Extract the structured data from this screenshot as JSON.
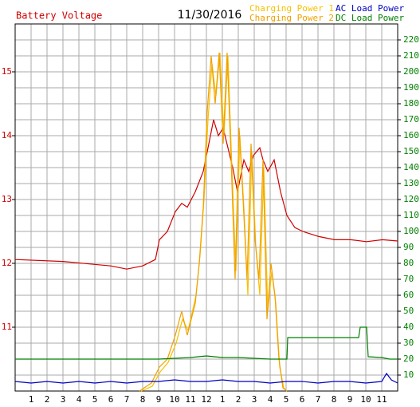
{
  "chart_data": {
    "type": "line",
    "title": "11/30/2016",
    "xlim": [
      0,
      24
    ],
    "xticks": [
      1,
      2,
      3,
      4,
      5,
      6,
      7,
      8,
      9,
      10,
      11,
      12,
      {
        "value": 13,
        "label": "1"
      },
      {
        "value": 14,
        "label": "2"
      },
      {
        "value": 15,
        "label": "3"
      },
      {
        "value": 16,
        "label": "4"
      },
      {
        "value": 17,
        "label": "5"
      },
      {
        "value": 18,
        "label": "6"
      },
      {
        "value": 19,
        "label": "7"
      },
      {
        "value": 20,
        "label": "8"
      },
      {
        "value": 21,
        "label": "9"
      },
      {
        "value": 22,
        "label": "10"
      },
      {
        "value": 23,
        "label": "11"
      }
    ],
    "ylim": [
      10,
      15.75
    ],
    "yticks": [
      11,
      12,
      13,
      14,
      15
    ],
    "ycolor": "#d00000",
    "y2lim": [
      0,
      230
    ],
    "y2ticks": [
      10,
      20,
      30,
      40,
      50,
      60,
      70,
      80,
      90,
      100,
      110,
      120,
      130,
      140,
      150,
      160,
      170,
      180,
      190,
      200,
      210,
      220
    ],
    "y2color": "#008000",
    "grid": true,
    "series": [
      {
        "name": "Battery Voltage",
        "color": "#d00000",
        "x": [
          0,
          3,
          6,
          7,
          8,
          8.8,
          9.05,
          9.55,
          10.05,
          10.45,
          10.8,
          11.3,
          11.8,
          12.15,
          12.45,
          12.75,
          13.05,
          13.35,
          13.65,
          13.95,
          14.35,
          14.65,
          14.95,
          15.35,
          15.55,
          15.85,
          16.25,
          16.65,
          17.05,
          17.55,
          18.05,
          19.05,
          20.05,
          21.05,
          22.05,
          23.05,
          24
        ],
        "values": [
          12.06,
          12.03,
          11.96,
          11.91,
          11.96,
          12.06,
          12.37,
          12.5,
          12.81,
          12.94,
          12.88,
          13.12,
          13.44,
          13.87,
          14.25,
          14.0,
          14.12,
          13.81,
          13.5,
          13.12,
          13.62,
          13.44,
          13.69,
          13.81,
          13.62,
          13.44,
          13.62,
          13.12,
          12.75,
          12.56,
          12.5,
          12.42,
          12.37,
          12.37,
          12.34,
          12.37,
          12.35
        ]
      },
      {
        "name": "Charging Power 1",
        "color": "#f8c000",
        "axis": "y2",
        "x": [
          7.9,
          8.6,
          9.1,
          9.6,
          10.1,
          10.5,
          10.85,
          11.35,
          11.6,
          11.85,
          12.1,
          12.35,
          12.6,
          12.85,
          13.1,
          13.35,
          13.6,
          13.85,
          14.1,
          14.35,
          14.6,
          14.85,
          15.1,
          15.35,
          15.6,
          15.85,
          16.1,
          16.35,
          16.6,
          16.85,
          17.05
        ],
        "values": [
          0,
          3,
          12,
          18,
          30,
          45,
          38,
          60,
          85,
          120,
          170,
          205,
          185,
          212,
          160,
          210,
          140,
          75,
          160,
          115,
          60,
          150,
          90,
          60,
          140,
          50,
          75,
          55,
          15,
          2,
          0
        ]
      },
      {
        "name": "Charging Power 2",
        "color": "#f0a000",
        "axis": "y2",
        "x": [
          7.8,
          8.55,
          9.05,
          9.55,
          10.05,
          10.45,
          10.8,
          11.3,
          11.55,
          11.8,
          12.05,
          12.3,
          12.55,
          12.8,
          13.05,
          13.3,
          13.55,
          13.8,
          14.05,
          14.3,
          14.55,
          14.8,
          15.05,
          15.3,
          15.55,
          15.8,
          16.05,
          16.3,
          16.55,
          16.8,
          17.05
        ],
        "values": [
          0,
          5,
          15,
          20,
          35,
          50,
          35,
          55,
          80,
          115,
          175,
          210,
          180,
          212,
          155,
          212,
          145,
          70,
          165,
          120,
          70,
          155,
          95,
          70,
          145,
          45,
          80,
          60,
          20,
          2,
          0
        ]
      },
      {
        "name": "AC Load Power",
        "color": "#0000c0",
        "axis": "y2",
        "x": [
          0,
          1,
          2,
          3,
          4,
          5,
          6,
          7,
          8,
          9,
          10,
          11,
          12,
          13,
          14,
          15,
          16,
          17,
          18,
          19,
          20,
          21,
          22,
          23,
          23.3,
          23.6,
          24
        ],
        "values": [
          6,
          5,
          6,
          5,
          6,
          5,
          6,
          5,
          6,
          6,
          7,
          6,
          6,
          7,
          6,
          6,
          5,
          6,
          6,
          5,
          6,
          6,
          5,
          6,
          11,
          7,
          5
        ]
      },
      {
        "name": "DC Load Power",
        "color": "#008000",
        "axis": "y2",
        "x": [
          0,
          3,
          6,
          9,
          11,
          12,
          13,
          14,
          16,
          17.05,
          17.1,
          19,
          21.55,
          21.65,
          22.05,
          22.15,
          23,
          23.5,
          24
        ],
        "values": [
          20,
          20,
          20,
          20,
          21,
          22,
          21,
          21,
          20,
          20,
          33.5,
          33.5,
          33.5,
          40,
          40,
          21.5,
          21,
          20,
          20
        ]
      }
    ]
  }
}
